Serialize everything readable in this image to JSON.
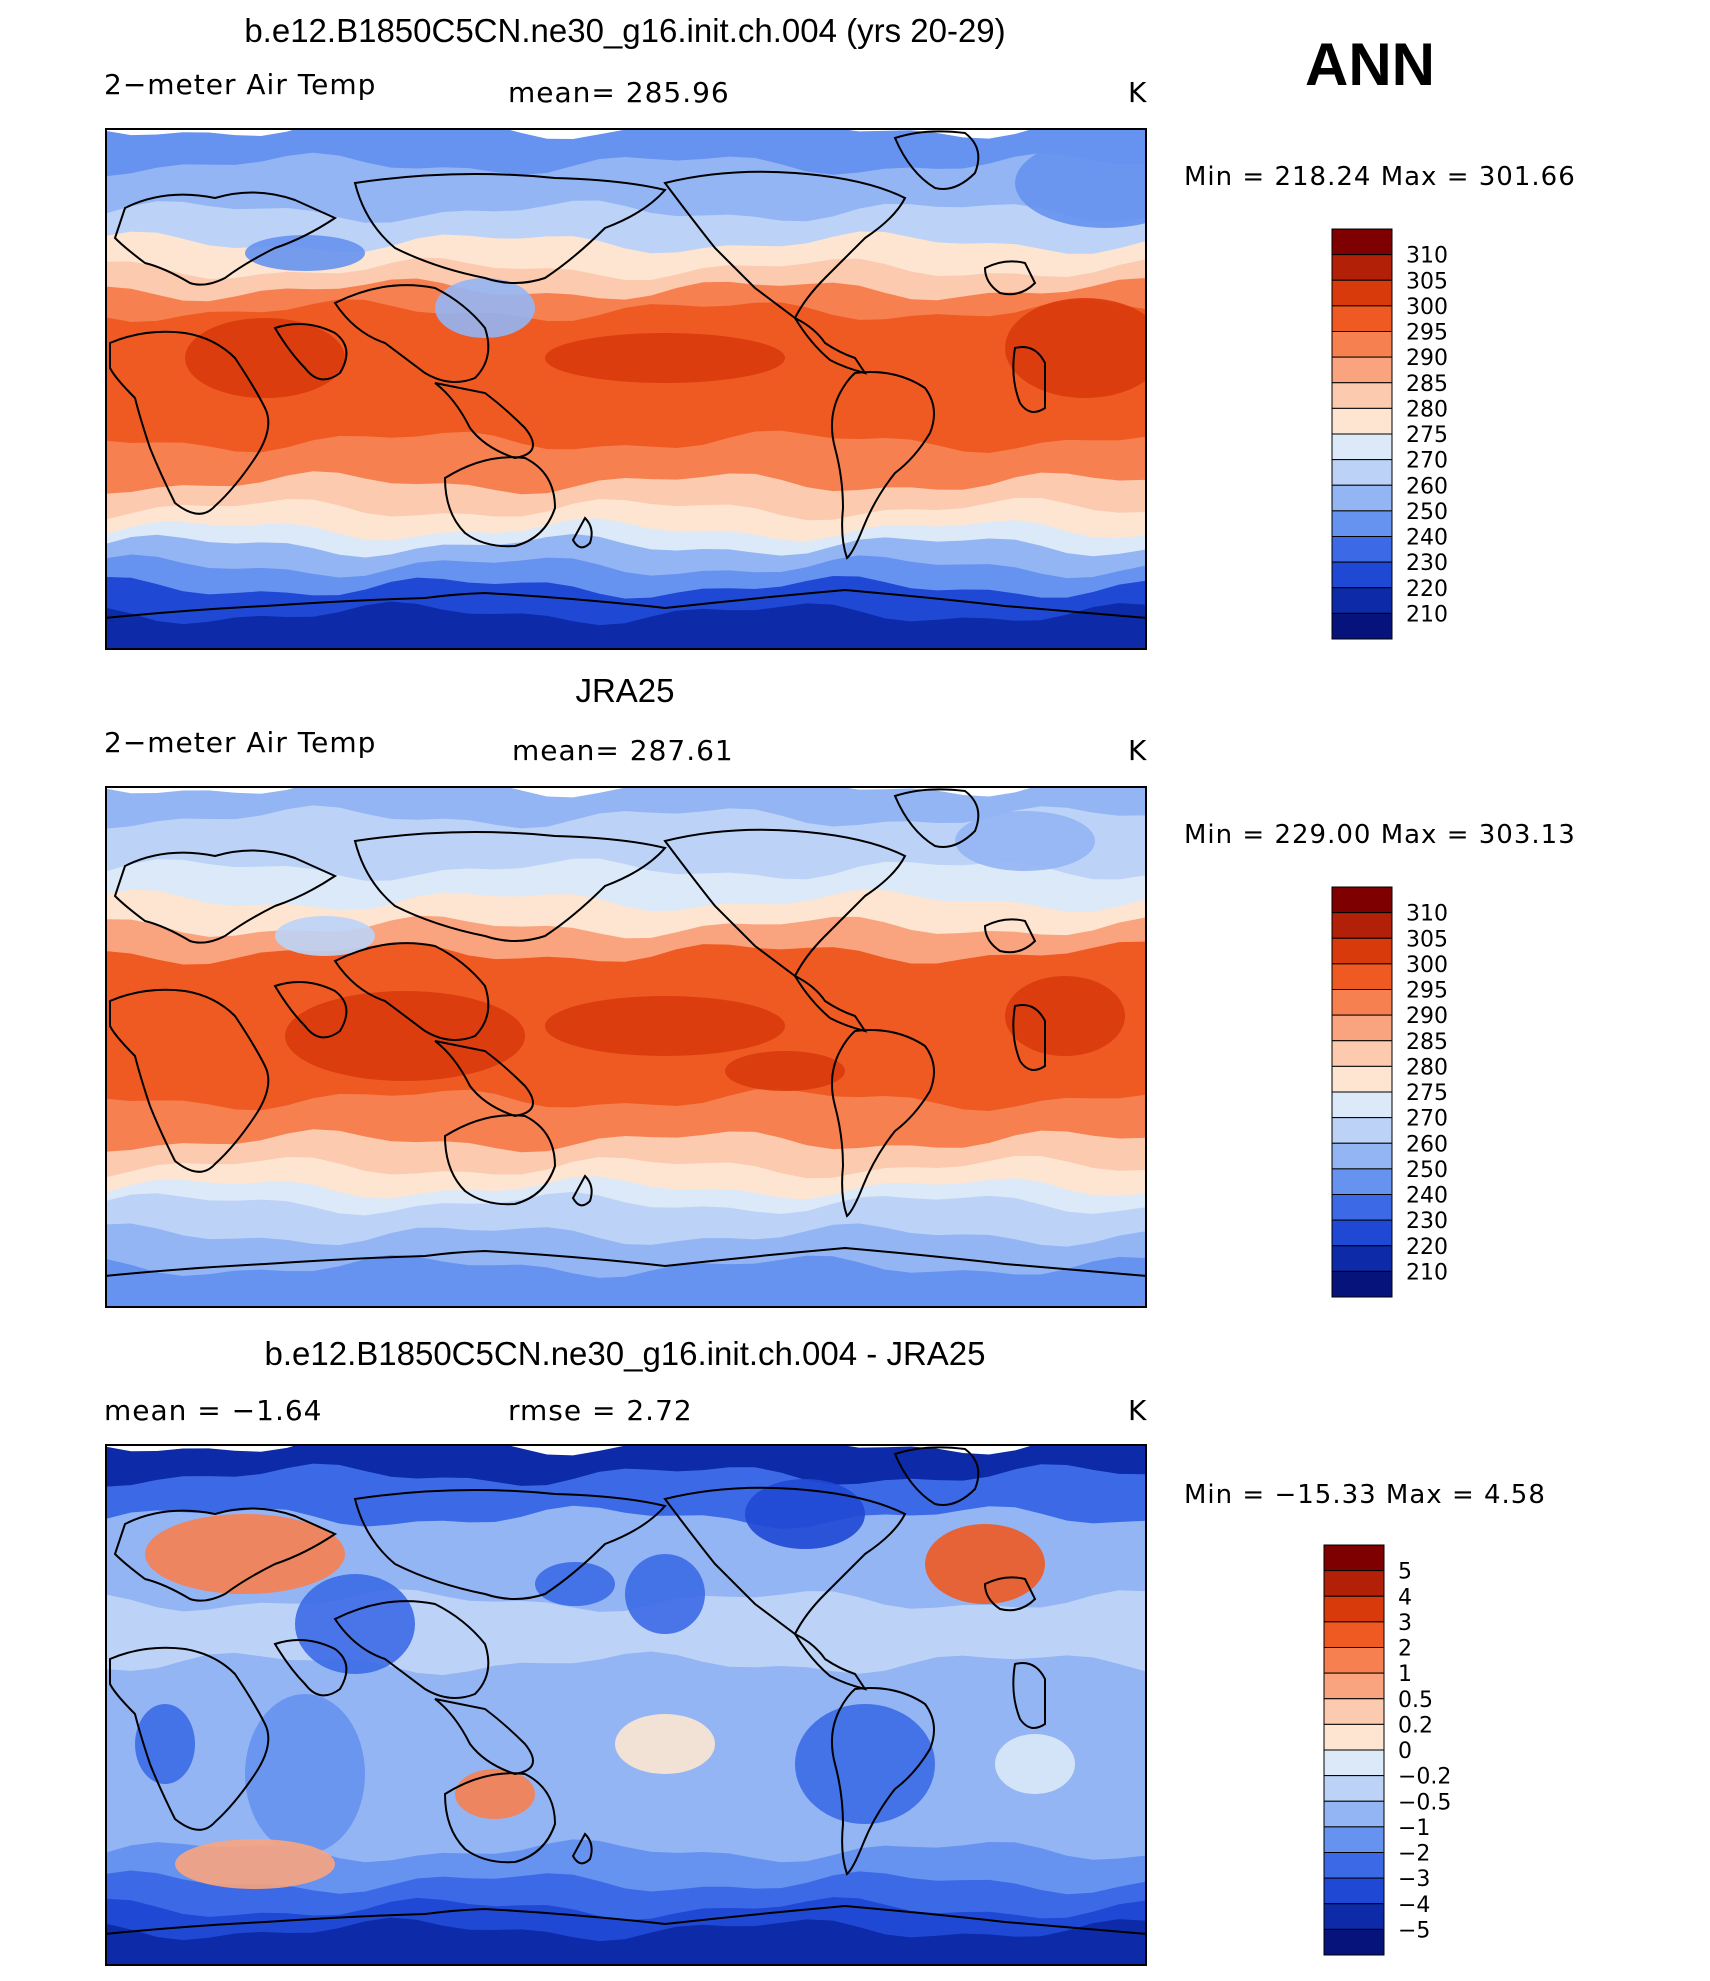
{
  "season": "ANN",
  "chart_data": [
    {
      "type": "heatmap",
      "title": "b.e12.B1850C5CN.ne30_g16.init.ch.004 (yrs 20-29)",
      "left_label": "2−meter Air Temp",
      "center_label": "mean=  285.96",
      "units": "K",
      "stats": "Min  =  218.24  Max  =  301.66",
      "map_type": "model",
      "colorbar": {
        "labels": [
          "310",
          "305",
          "300",
          "295",
          "290",
          "285",
          "280",
          "275",
          "270",
          "260",
          "250",
          "240",
          "230",
          "220",
          "210"
        ],
        "colors": [
          "#7f0000",
          "#b22008",
          "#d83a0c",
          "#ee5a22",
          "#f78050",
          "#f9a47e",
          "#fbcaaf",
          "#fde5d2",
          "#dce9f8",
          "#bcd3f7",
          "#93b5f4",
          "#6692f0",
          "#3c6ae6",
          "#1f48d4",
          "#0d2aa8",
          "#06137a"
        ]
      }
    },
    {
      "type": "heatmap",
      "title": "JRA25",
      "left_label": "2−meter Air Temp",
      "center_label": "mean=  287.61",
      "units": "K",
      "stats": "Min  =  229.00  Max  =  303.13",
      "map_type": "obs",
      "colorbar": {
        "labels": [
          "310",
          "305",
          "300",
          "295",
          "290",
          "285",
          "280",
          "275",
          "270",
          "260",
          "250",
          "240",
          "230",
          "220",
          "210"
        ],
        "colors": [
          "#7f0000",
          "#b22008",
          "#d83a0c",
          "#ee5a22",
          "#f78050",
          "#f9a47e",
          "#fbcaaf",
          "#fde5d2",
          "#dce9f8",
          "#bcd3f7",
          "#93b5f4",
          "#6692f0",
          "#3c6ae6",
          "#1f48d4",
          "#0d2aa8",
          "#06137a"
        ]
      }
    },
    {
      "type": "heatmap",
      "title": "b.e12.B1850C5CN.ne30_g16.init.ch.004 - JRA25",
      "left_label": "mean  =    −1.64",
      "center_label": "rmse  =      2.72",
      "units": "K",
      "stats": "Min  =  −15.33  Max  =     4.58",
      "map_type": "diff",
      "colorbar": {
        "labels": [
          "5",
          "4",
          "3",
          "2",
          "1",
          "0.5",
          "0.2",
          "0",
          "−0.2",
          "−0.5",
          "−1",
          "−2",
          "−3",
          "−4",
          "−5"
        ],
        "colors": [
          "#7f0000",
          "#b22008",
          "#d83a0c",
          "#ee5a22",
          "#f78050",
          "#f9a47e",
          "#fbcaaf",
          "#fde5d2",
          "#dce9f8",
          "#bcd3f7",
          "#93b5f4",
          "#6692f0",
          "#3c6ae6",
          "#1f48d4",
          "#0d2aa8",
          "#06137a"
        ]
      }
    }
  ]
}
